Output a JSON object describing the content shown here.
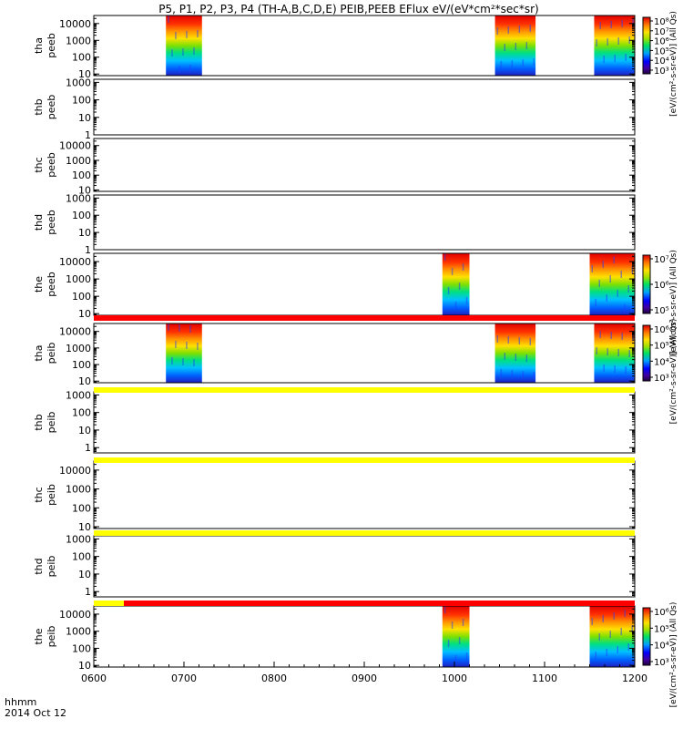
{
  "title": "P5, P1, P2, P3, P4 (TH-A,B,C,D,E) PEIB,PEEB EFlux eV/(eV*cm²*sec*sr)",
  "footer": {
    "xlabel": "hhmm",
    "date": "2014 Oct 12"
  },
  "chart_data": {
    "type": "heatmap",
    "title": "P5, P1, P2, P3, P4 (TH-A,B,C,D,E) PEIB,PEEB EFlux eV/(eV*cm²*sec*sr)",
    "x_axis": {
      "label": "hhmm",
      "ticks": [
        "0600",
        "0700",
        "0800",
        "0900",
        "1000",
        "1100",
        "1200"
      ],
      "range": [
        "0600",
        "1200"
      ]
    },
    "date": "2014 Oct 12",
    "panels": [
      {
        "label": [
          "tha",
          "peeb"
        ],
        "yticks": [
          "10000",
          "1000",
          "100",
          "10"
        ],
        "ylim": [
          8,
          30000
        ],
        "data_intervals": [
          [
            "0648",
            "0712"
          ],
          [
            "1027",
            "1054"
          ],
          [
            "1133",
            "1200"
          ]
        ],
        "colorbar": {
          "ticks": [
            "10⁸",
            "10⁷",
            "10⁶",
            "10⁵",
            "10⁴",
            "10³"
          ],
          "label": "[eV/(cm²-s-sr-eV)] (All Qs)"
        }
      },
      {
        "label": [
          "thb",
          "peeb"
        ],
        "yticks": [
          "1000",
          "100",
          "10",
          "1"
        ],
        "ylim": [
          1,
          1500
        ],
        "data_intervals": []
      },
      {
        "label": [
          "thc",
          "peeb"
        ],
        "yticks": [
          "10000",
          "1000",
          "100",
          "10"
        ],
        "ylim": [
          8,
          30000
        ],
        "data_intervals": []
      },
      {
        "label": [
          "thd",
          "peeb"
        ],
        "yticks": [
          "1000",
          "100",
          "10",
          "1"
        ],
        "ylim": [
          1,
          1500
        ],
        "data_intervals": []
      },
      {
        "label": [
          "the",
          "peeb"
        ],
        "yticks": [
          "10000",
          "1000",
          "100",
          "10"
        ],
        "ylim": [
          8,
          30000
        ],
        "data_intervals": [
          [
            "0952",
            "1010"
          ],
          [
            "1130",
            "1200"
          ]
        ],
        "colorbar": {
          "ticks": [
            "10⁷",
            "10⁶",
            "10⁵"
          ],
          "label": "[eV/(cm²-s-sr-eV)] (All Qs)"
        }
      },
      {
        "label": [
          "tha",
          "peib"
        ],
        "yticks": [
          "10000",
          "1000",
          "100",
          "10"
        ],
        "ylim": [
          8,
          30000
        ],
        "data_intervals": [
          [
            "0648",
            "0712"
          ],
          [
            "1027",
            "1054"
          ],
          [
            "1133",
            "1200"
          ]
        ],
        "colorbar": {
          "ticks": [
            "10⁶",
            "10⁵",
            "10⁴",
            "10³"
          ],
          "label": "[eV/(cm²-s-sr-eV)] (All Qs)"
        }
      },
      {
        "label": [
          "thb",
          "peib"
        ],
        "yticks": [
          "1000",
          "100",
          "10",
          "1"
        ],
        "ylim": [
          0.5,
          1500
        ],
        "data_intervals": []
      },
      {
        "label": [
          "thc",
          "peib"
        ],
        "yticks": [
          "10000",
          "1000",
          "100",
          "10"
        ],
        "ylim": [
          8,
          30000
        ],
        "data_intervals": []
      },
      {
        "label": [
          "thd",
          "peib"
        ],
        "yticks": [
          "1000",
          "100",
          "10",
          "1"
        ],
        "ylim": [
          0.5,
          1500
        ],
        "data_intervals": []
      },
      {
        "label": [
          "the",
          "peib"
        ],
        "yticks": [
          "10000",
          "1000",
          "100",
          "10"
        ],
        "ylim": [
          8,
          30000
        ],
        "data_intervals": [
          [
            "0952",
            "1010"
          ],
          [
            "1130",
            "1200"
          ]
        ],
        "colorbar": {
          "ticks": [
            "10⁶",
            "10⁵",
            "10⁴",
            "10³"
          ],
          "label": "[eV/(cm²-s-sr-eV)] (All Qs)"
        }
      }
    ],
    "mode_bars": [
      {
        "segments": [
          {
            "from": "0600",
            "to": "1200",
            "color": "#ff0000"
          }
        ]
      },
      {
        "segments": [
          {
            "from": "0600",
            "to": "1200",
            "color": "#ffff00"
          }
        ]
      },
      {
        "segments": [
          {
            "from": "0600",
            "to": "1200",
            "color": "#ffff00"
          }
        ]
      },
      {
        "segments": [
          {
            "from": "0600",
            "to": "1200",
            "color": "#ffff00"
          }
        ]
      },
      {
        "segments": [
          {
            "from": "0600",
            "to": "0620",
            "color": "#ffff00"
          },
          {
            "from": "0620",
            "to": "1200",
            "color": "#ff0000"
          }
        ]
      }
    ]
  }
}
